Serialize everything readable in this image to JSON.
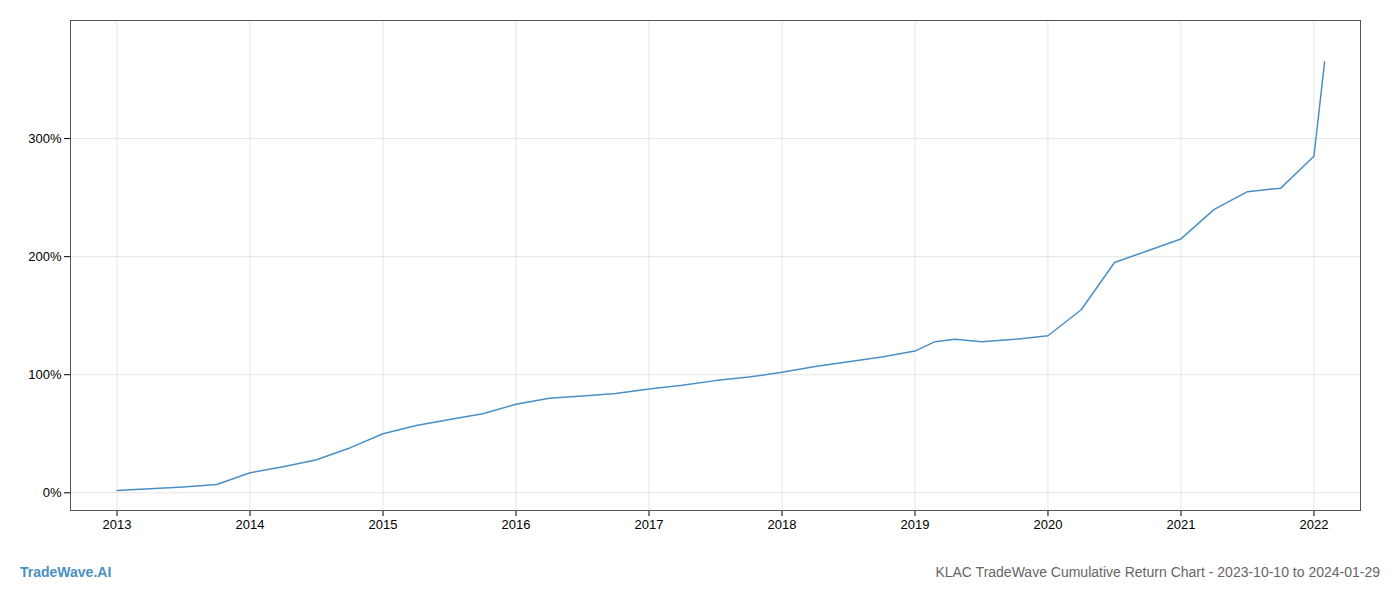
{
  "chart_data": {
    "type": "line",
    "title": "KLAC TradeWave Cumulative Return Chart - 2023-10-10 to 2024-01-29",
    "annotations": [
      "TradeWave.AI"
    ],
    "color": "#4a90c4",
    "x": [
      2013.0,
      2013.1,
      2013.25,
      2013.5,
      2013.75,
      2014.0,
      2014.25,
      2014.5,
      2014.75,
      2015.0,
      2015.25,
      2015.5,
      2015.75,
      2016.0,
      2016.25,
      2016.5,
      2016.75,
      2017.0,
      2017.25,
      2017.5,
      2017.75,
      2018.0,
      2018.25,
      2018.5,
      2018.75,
      2019.0,
      2019.15,
      2019.3,
      2019.5,
      2019.75,
      2020.0,
      2020.25,
      2020.5,
      2020.75,
      2021.0,
      2021.25,
      2021.5,
      2021.75,
      2022.0,
      2022.08
    ],
    "values": [
      2.0,
      2.5,
      3.5,
      5.0,
      7.0,
      17.0,
      22.0,
      28.0,
      38.0,
      50.0,
      57.0,
      62.0,
      67.0,
      75.0,
      80.0,
      82.0,
      84.0,
      88.0,
      91.0,
      95.0,
      98.0,
      102.0,
      107.0,
      111.0,
      115.0,
      120.0,
      128.0,
      130.0,
      128.0,
      130.0,
      133.0,
      155.0,
      195.0,
      205.0,
      215.0,
      240.0,
      255.0,
      258.0,
      285.0,
      365.0
    ],
    "xlim": [
      2012.65,
      2022.35
    ],
    "xticks": [
      2013,
      2014,
      2015,
      2016,
      2017,
      2018,
      2019,
      2020,
      2021,
      2022
    ],
    "ylim": [
      -15,
      400
    ],
    "yticks": [
      {
        "value": 0,
        "label": "0%"
      },
      {
        "value": 100,
        "label": "100%"
      },
      {
        "value": 200,
        "label": "200%"
      },
      {
        "value": 300,
        "label": "300%"
      }
    ],
    "grid": true
  }
}
